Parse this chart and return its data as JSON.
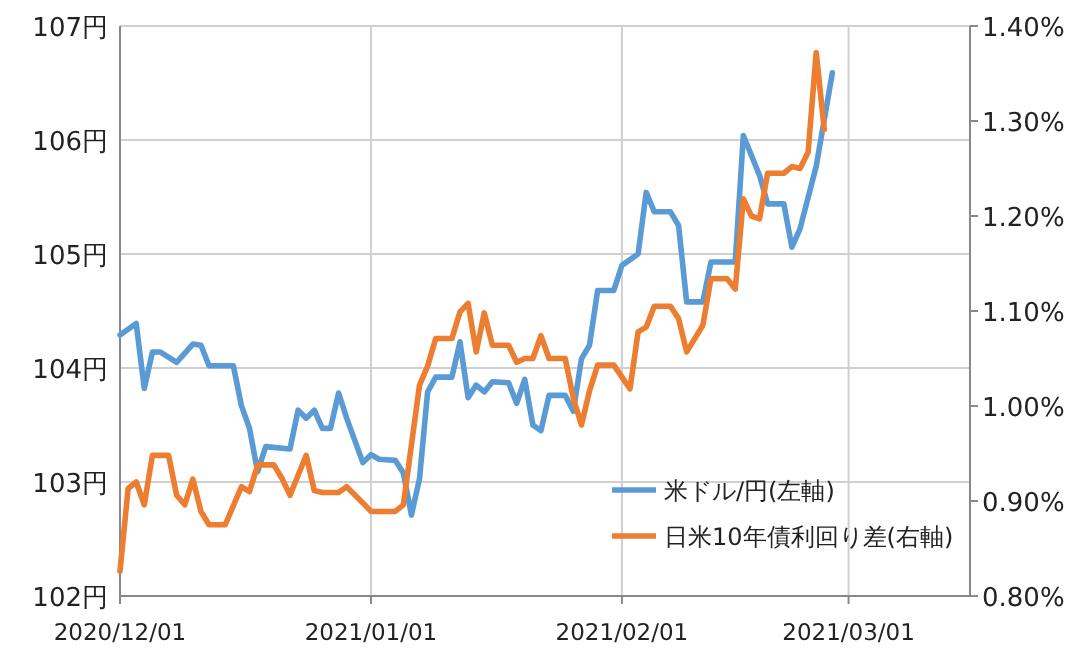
{
  "chart_data": {
    "type": "line",
    "x": [
      "2020-12-01",
      "2020-12-03",
      "2020-12-04",
      "2020-12-05",
      "2020-12-06",
      "2020-12-08",
      "2020-12-10",
      "2020-12-11",
      "2020-12-12",
      "2020-12-15",
      "2020-12-16",
      "2020-12-17",
      "2020-12-18",
      "2020-12-19",
      "2020-12-22",
      "2020-12-23",
      "2020-12-24",
      "2020-12-25",
      "2020-12-26",
      "2020-12-27",
      "2020-12-28",
      "2020-12-29",
      "2020-12-31",
      "2021-01-01",
      "2021-01-02",
      "2021-01-04",
      "2021-01-05",
      "2021-01-06",
      "2021-01-07",
      "2021-01-08",
      "2021-01-09",
      "2021-01-11",
      "2021-01-12",
      "2021-01-13",
      "2021-01-14",
      "2021-01-15",
      "2021-01-16",
      "2021-01-18",
      "2021-01-19",
      "2021-01-20",
      "2021-01-21",
      "2021-01-22",
      "2021-01-23",
      "2021-01-25",
      "2021-01-26",
      "2021-01-27",
      "2021-01-28",
      "2021-01-29",
      "2021-01-31",
      "2021-02-01",
      "2021-02-03",
      "2021-02-04",
      "2021-02-05",
      "2021-02-07",
      "2021-02-08",
      "2021-02-09",
      "2021-02-11",
      "2021-02-12",
      "2021-02-15",
      "2021-02-16",
      "2021-02-18",
      "2021-02-19",
      "2021-02-21",
      "2021-02-22",
      "2021-02-23",
      "2021-02-25",
      "2021-02-27"
    ],
    "series": [
      {
        "name": "米ドル/円(左軸)",
        "color": "#5b9bd5",
        "values": [
          104.29,
          104.39,
          103.82,
          104.14,
          104.14,
          104.05,
          104.21,
          104.2,
          104.02,
          104.02,
          103.67,
          103.47,
          103.09,
          103.31,
          103.29,
          103.63,
          103.56,
          103.63,
          103.47,
          103.47,
          103.78,
          103.56,
          103.17,
          103.24,
          103.2,
          103.19,
          103.08,
          102.71,
          103.03,
          103.79,
          103.92,
          103.92,
          104.23,
          103.74,
          103.85,
          103.79,
          103.88,
          103.87,
          103.69,
          103.9,
          103.5,
          103.45,
          103.76,
          103.76,
          103.62,
          104.08,
          104.2,
          104.68,
          104.68,
          104.9,
          105.0,
          105.54,
          105.37,
          105.37,
          105.25,
          104.58,
          104.58,
          104.93,
          104.93,
          106.04,
          105.69,
          105.44,
          105.44,
          105.06,
          105.22,
          105.77,
          106.59
        ]
      },
      {
        "name": "日米10年債利回り差(右軸)",
        "color": "#ed7d31",
        "axis": "y2",
        "x": [
          "2020-12-01",
          "2020-12-02",
          "2020-12-03",
          "2020-12-04",
          "2020-12-05",
          "2020-12-07",
          "2020-12-08",
          "2020-12-09",
          "2020-12-10",
          "2020-12-11",
          "2020-12-12",
          "2020-12-14",
          "2020-12-16",
          "2020-12-17",
          "2020-12-18",
          "2020-12-20",
          "2020-12-21",
          "2020-12-22",
          "2020-12-24",
          "2020-12-25",
          "2020-12-26",
          "2020-12-28",
          "2020-12-29",
          "2020-12-31",
          "2021-01-01",
          "2021-01-04",
          "2021-01-05",
          "2021-01-07",
          "2021-01-08",
          "2021-01-09",
          "2021-01-11",
          "2021-01-12",
          "2021-01-13",
          "2021-01-14",
          "2021-01-15",
          "2021-01-16",
          "2021-01-18",
          "2021-01-19",
          "2021-01-20",
          "2021-01-21",
          "2021-01-22",
          "2021-01-23",
          "2021-01-25",
          "2021-01-26",
          "2021-01-27",
          "2021-01-28",
          "2021-01-29",
          "2021-01-31",
          "2021-02-02",
          "2021-02-03",
          "2021-02-04",
          "2021-02-05",
          "2021-02-07",
          "2021-02-08",
          "2021-02-09",
          "2021-02-11",
          "2021-02-12",
          "2021-02-14",
          "2021-02-15",
          "2021-02-16",
          "2021-02-17",
          "2021-02-18",
          "2021-02-19",
          "2021-02-21",
          "2021-02-22",
          "2021-02-23",
          "2021-02-24",
          "2021-02-25",
          "2021-02-26"
        ],
        "values": [
          0.826,
          0.913,
          0.92,
          0.896,
          0.948,
          0.948,
          0.906,
          0.896,
          0.923,
          0.889,
          0.875,
          0.875,
          0.915,
          0.91,
          0.938,
          0.938,
          0.924,
          0.906,
          0.948,
          0.911,
          0.909,
          0.909,
          0.915,
          0.898,
          0.889,
          0.889,
          0.896,
          1.022,
          1.042,
          1.071,
          1.071,
          1.099,
          1.108,
          1.057,
          1.098,
          1.064,
          1.064,
          1.046,
          1.05,
          1.05,
          1.074,
          1.05,
          1.05,
          1.008,
          0.98,
          1.016,
          1.043,
          1.043,
          1.018,
          1.078,
          1.083,
          1.105,
          1.105,
          1.092,
          1.057,
          1.085,
          1.134,
          1.134,
          1.123,
          1.218,
          1.2,
          1.197,
          1.245,
          1.245,
          1.252,
          1.25,
          1.267,
          1.372,
          1.291
        ]
      }
    ],
    "xlim": [
      "2020-12-01",
      "2021-03-16"
    ],
    "xticks": [
      {
        "value": "2020-12-01",
        "label": "2020/12/01"
      },
      {
        "value": "2021-01-01",
        "label": "2021/01/01"
      },
      {
        "value": "2021-02-01",
        "label": "2021/02/01"
      },
      {
        "value": "2021-03-01",
        "label": "2021/03/01"
      }
    ],
    "ylim": [
      102,
      107
    ],
    "yticks": [
      {
        "value": 102,
        "label": "102円"
      },
      {
        "value": 103,
        "label": "103円"
      },
      {
        "value": 104,
        "label": "104円"
      },
      {
        "value": 105,
        "label": "105円"
      },
      {
        "value": 106,
        "label": "106円"
      },
      {
        "value": 107,
        "label": "107円"
      }
    ],
    "y2lim": [
      0.8,
      1.4
    ],
    "y2ticks": [
      {
        "value": 0.8,
        "label": "0.80%"
      },
      {
        "value": 0.9,
        "label": "0.90%"
      },
      {
        "value": 1.0,
        "label": "1.00%"
      },
      {
        "value": 1.1,
        "label": "1.10%"
      },
      {
        "value": 1.2,
        "label": "1.20%"
      },
      {
        "value": 1.3,
        "label": "1.30%"
      },
      {
        "value": 1.4,
        "label": "1.40%"
      }
    ],
    "grid": true,
    "legend": "bottom right"
  }
}
